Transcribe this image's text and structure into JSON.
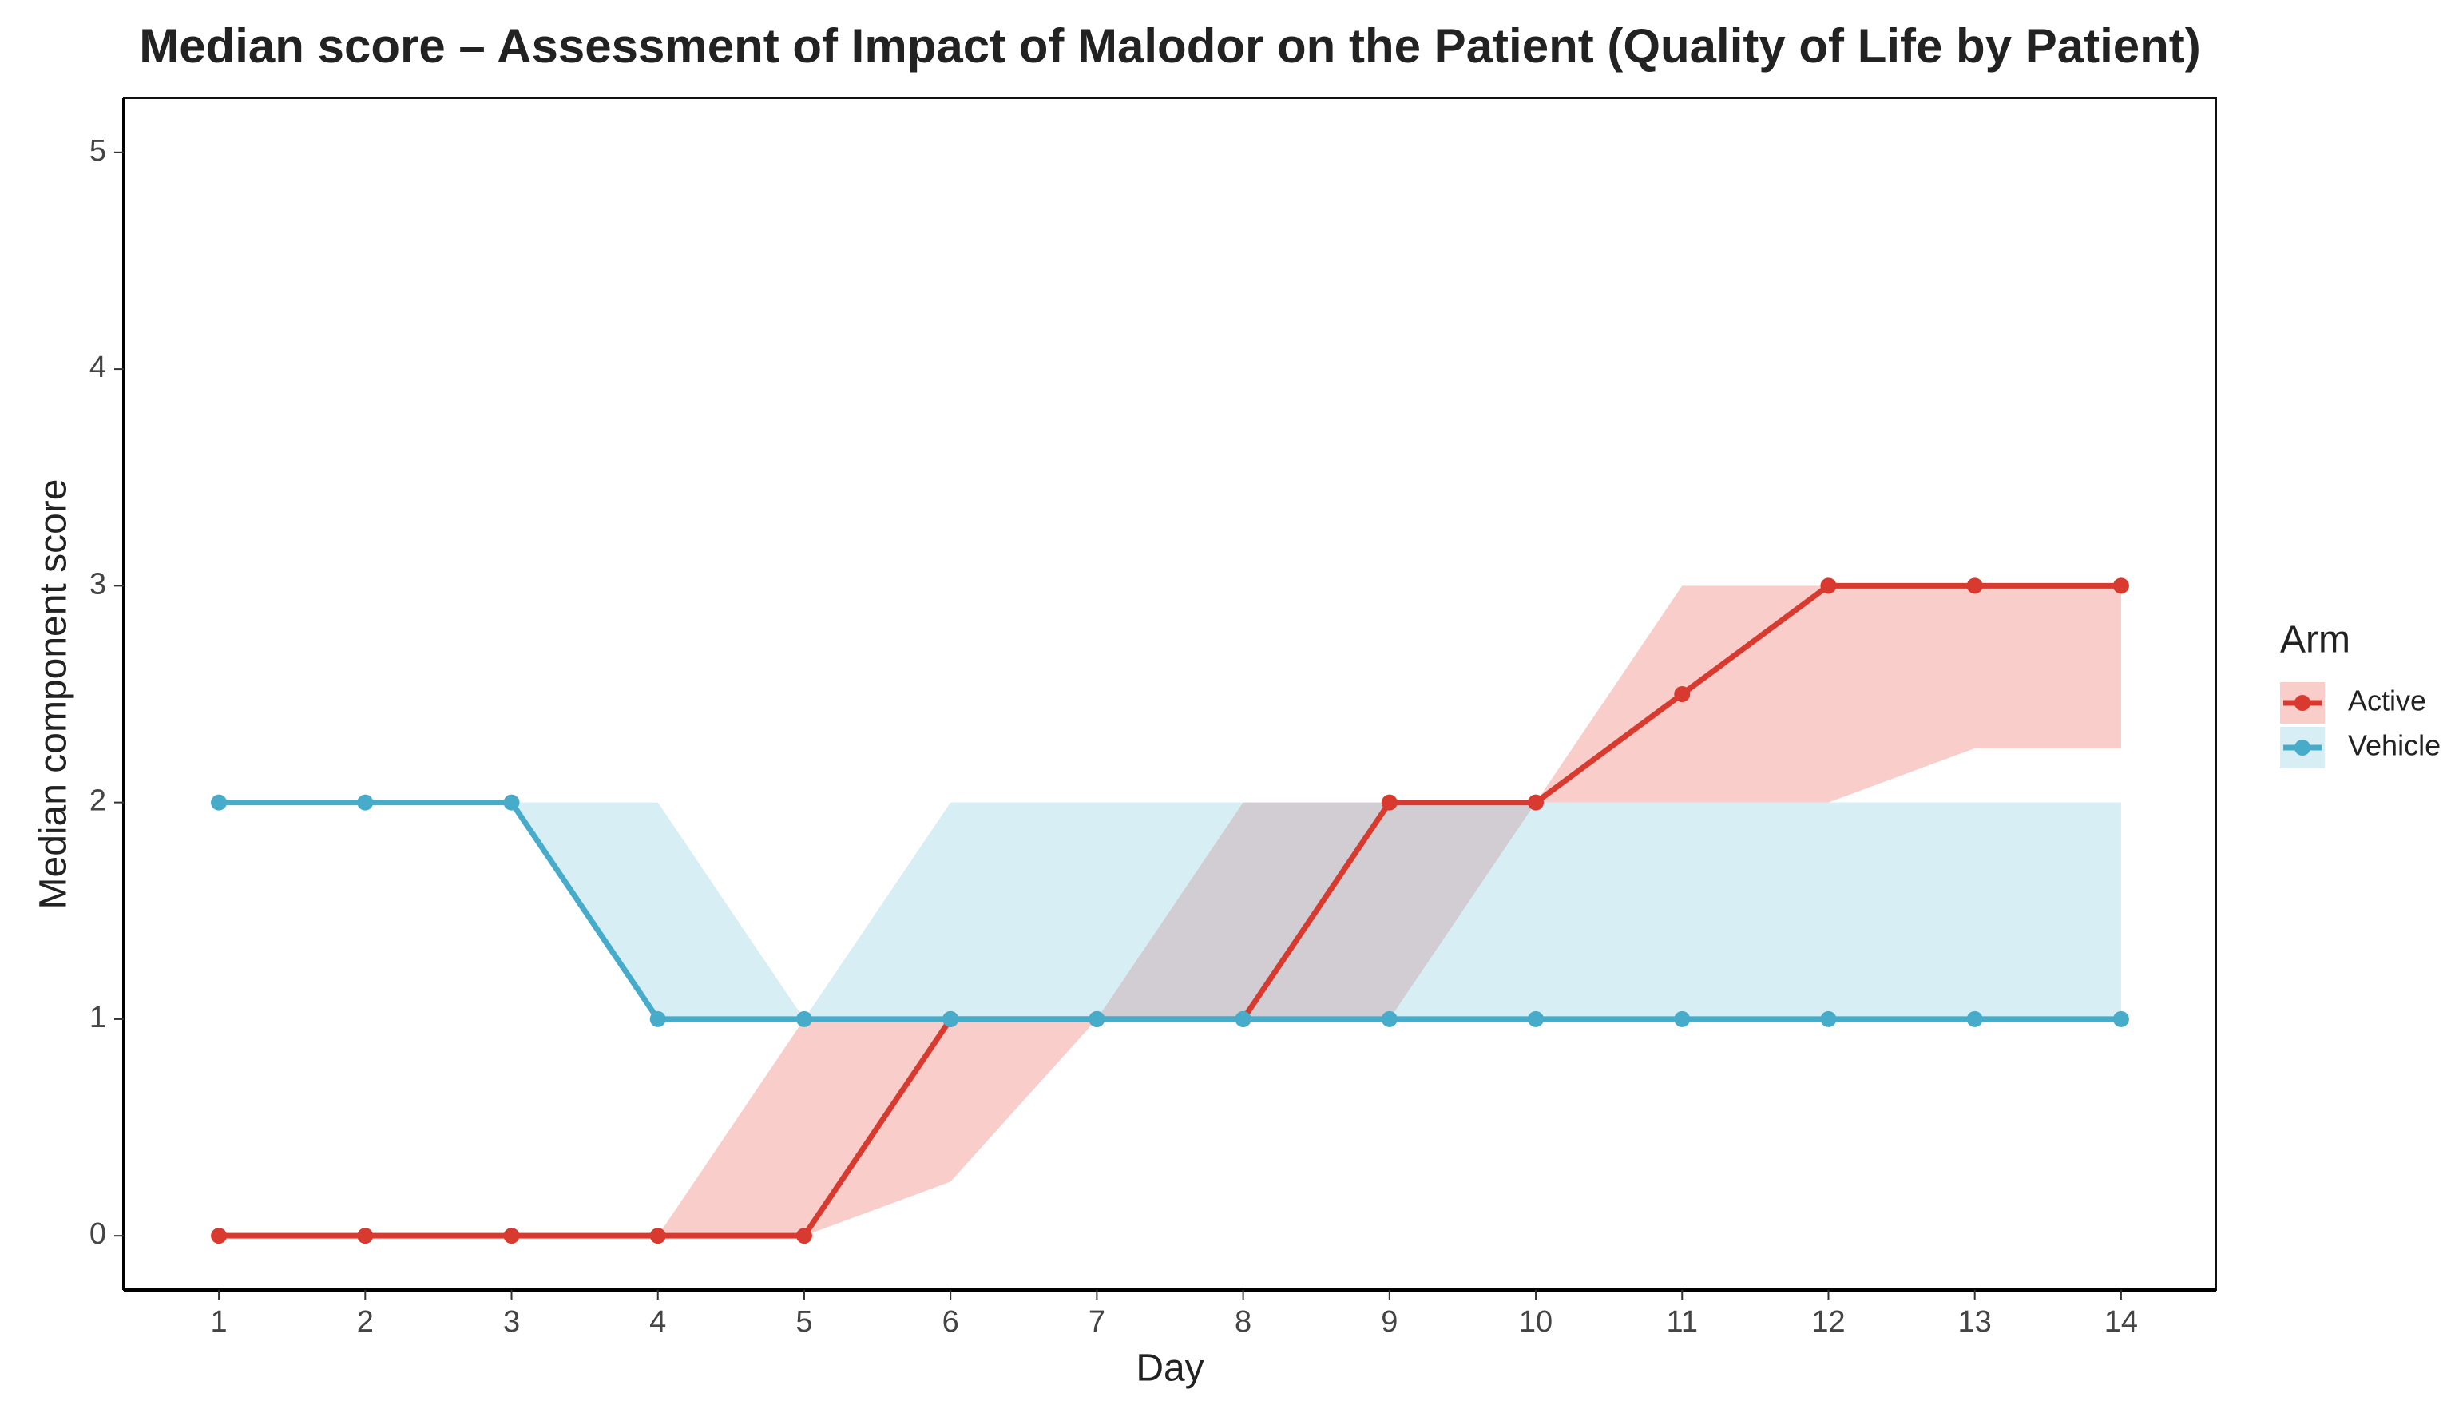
{
  "chart_data": {
    "type": "line",
    "title": "Median score – Assessment of Impact of Malodor on the Patient (Quality of Life by Patient)",
    "x_label": "Day",
    "y_label": "Median component score",
    "legend_title": "Arm",
    "x": [
      1,
      2,
      3,
      4,
      5,
      6,
      7,
      8,
      9,
      10,
      11,
      12,
      13,
      14
    ],
    "series": [
      {
        "name": "Active",
        "color": "#d93a2f",
        "band_color": "#ec6f66",
        "values": [
          0,
          0,
          0,
          0,
          0,
          1,
          1,
          1,
          2,
          2,
          2.5,
          3,
          3,
          3
        ],
        "lower": [
          0,
          0,
          0,
          0,
          0,
          0.25,
          1,
          1,
          1,
          2,
          2,
          2,
          2.25,
          2.25
        ],
        "upper": [
          0,
          0,
          0,
          0,
          1,
          1,
          1,
          2,
          2,
          2,
          3,
          3,
          3,
          3
        ]
      },
      {
        "name": "Vehicle",
        "color": "#47abca",
        "band_color": "#8ccde2",
        "values": [
          2,
          2,
          2,
          1,
          1,
          1,
          1,
          1,
          1,
          1,
          1,
          1,
          1,
          1
        ],
        "lower": [
          2,
          2,
          2,
          1,
          1,
          1,
          1,
          1,
          1,
          1,
          1,
          1,
          1,
          1
        ],
        "upper": [
          2,
          2,
          2,
          2,
          1,
          2,
          2,
          2,
          2,
          2,
          2,
          2,
          2,
          2
        ]
      }
    ],
    "xlim": [
      0.35,
      14.65
    ],
    "xticks": [
      1,
      2,
      3,
      4,
      5,
      6,
      7,
      8,
      9,
      10,
      11,
      12,
      13,
      14
    ],
    "ylim": [
      -0.25,
      5.25
    ],
    "yticks": [
      0,
      1,
      2,
      3,
      4,
      5
    ],
    "grid": false,
    "legend_position": "right"
  }
}
